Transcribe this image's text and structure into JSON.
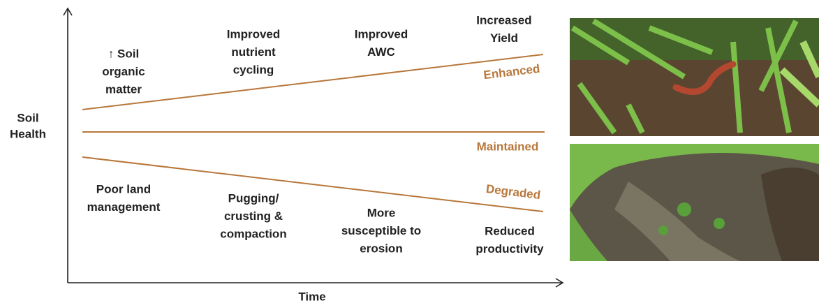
{
  "axes": {
    "y_label": [
      "Soil",
      "Health"
    ],
    "x_label": "Time"
  },
  "trends": {
    "enhanced": "Enhanced",
    "maintained": "Maintained",
    "degraded": "Degraded"
  },
  "upper_notes": [
    {
      "lines": [
        "↑ Soil",
        "organic",
        "matter"
      ]
    },
    {
      "lines": [
        "Improved",
        "nutrient",
        "cycling"
      ]
    },
    {
      "lines": [
        "Improved",
        "AWC"
      ]
    },
    {
      "lines": [
        "Increased",
        "Yield"
      ]
    }
  ],
  "lower_notes": [
    {
      "lines": [
        "Poor land",
        "management"
      ]
    },
    {
      "lines": [
        "Pugging/",
        "crusting &",
        "compaction"
      ]
    },
    {
      "lines": [
        "More",
        "susceptible to",
        "erosion"
      ]
    },
    {
      "lines": [
        "Reduced",
        "productivity"
      ]
    }
  ]
}
